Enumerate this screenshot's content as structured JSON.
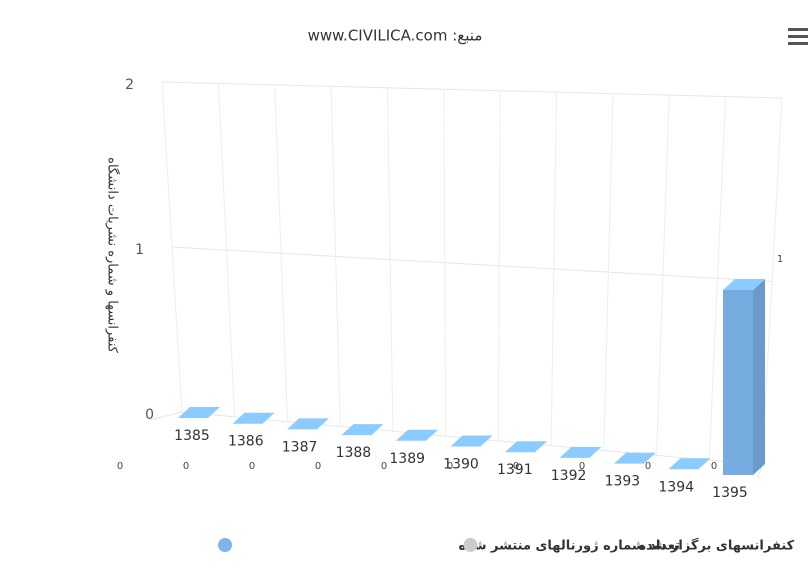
{
  "chart_data": {
    "type": "bar",
    "title": "منبع: www.CIVILICA.com",
    "y_axis_label": "کنفرانسها و شماره نشریات دانشگاه",
    "categories": [
      "1385",
      "1386",
      "1387",
      "1388",
      "1389",
      "1390",
      "1391",
      "1392",
      "1393",
      "1394",
      "1395"
    ],
    "series": [
      {
        "name": "تعداد شماره ژورنالهای منتشر شده",
        "color": "#7cb5ec",
        "visible": true,
        "values": [
          0,
          0,
          0,
          0,
          0,
          0,
          0,
          0,
          0,
          0,
          1
        ]
      },
      {
        "name": "کنفرانسهای برگزار شده",
        "color": "#cccccc",
        "visible": false,
        "values": [
          null,
          null,
          null,
          null,
          null,
          null,
          null,
          null,
          null,
          null,
          null
        ]
      }
    ],
    "ylim": [
      0,
      2
    ],
    "yticks": [
      0,
      1,
      2
    ],
    "grid": true,
    "legend": "bottom",
    "three_d": true
  }
}
